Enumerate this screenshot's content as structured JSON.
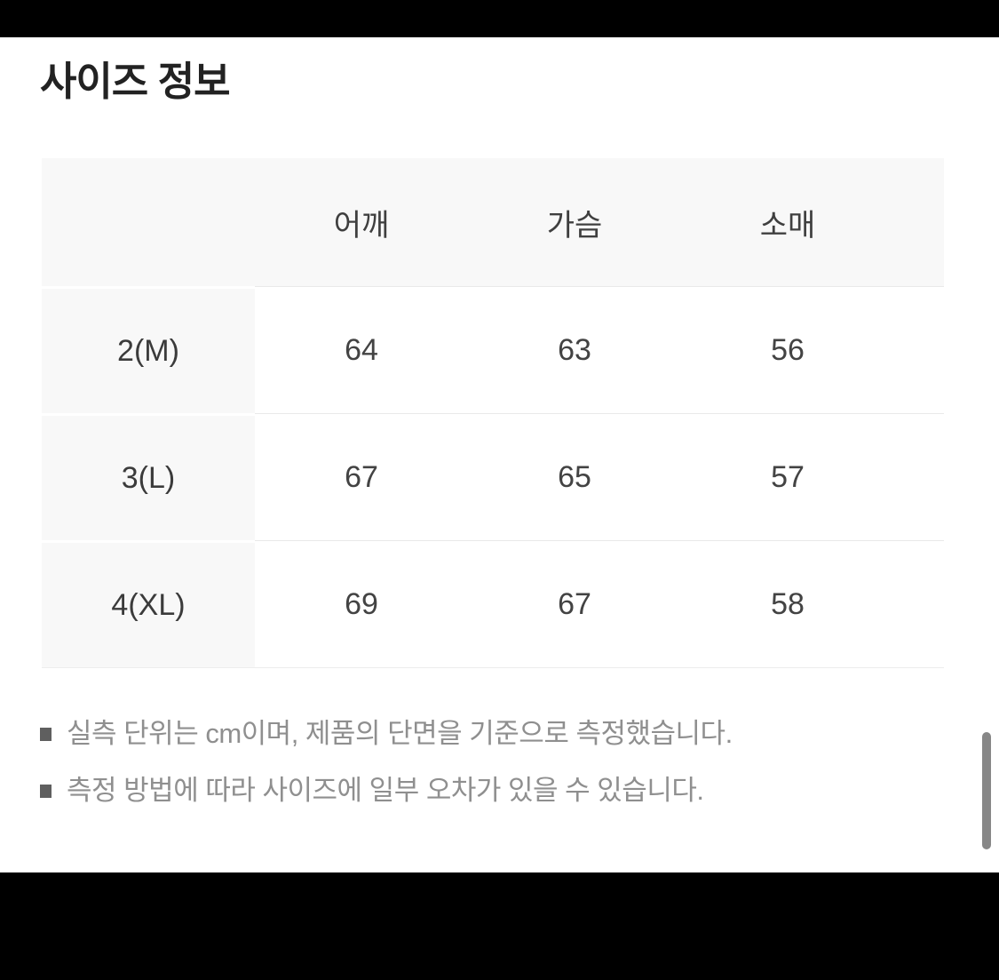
{
  "page": {
    "title": "사이즈 정보"
  },
  "table": {
    "columns": [
      "어깨",
      "가슴",
      "소매"
    ],
    "rows": [
      {
        "size": "2(M)",
        "values": [
          "64",
          "63",
          "56"
        ]
      },
      {
        "size": "3(L)",
        "values": [
          "67",
          "65",
          "57"
        ]
      },
      {
        "size": "4(XL)",
        "values": [
          "69",
          "67",
          "58"
        ]
      }
    ],
    "unit": "cm"
  },
  "notes": [
    "실측 단위는 cm이며, 제품의 단면을 기준으로 측정했습니다.",
    "측정 방법에 따라 사이즈에 일부 오차가 있을 수 있습니다."
  ],
  "colors": {
    "letterbox": "#000000",
    "table_head_bg": "#f8f8f8",
    "row_divider": "#e9e9e9",
    "note_text": "#8f8f8f",
    "scroll_thumb": "#878787"
  }
}
